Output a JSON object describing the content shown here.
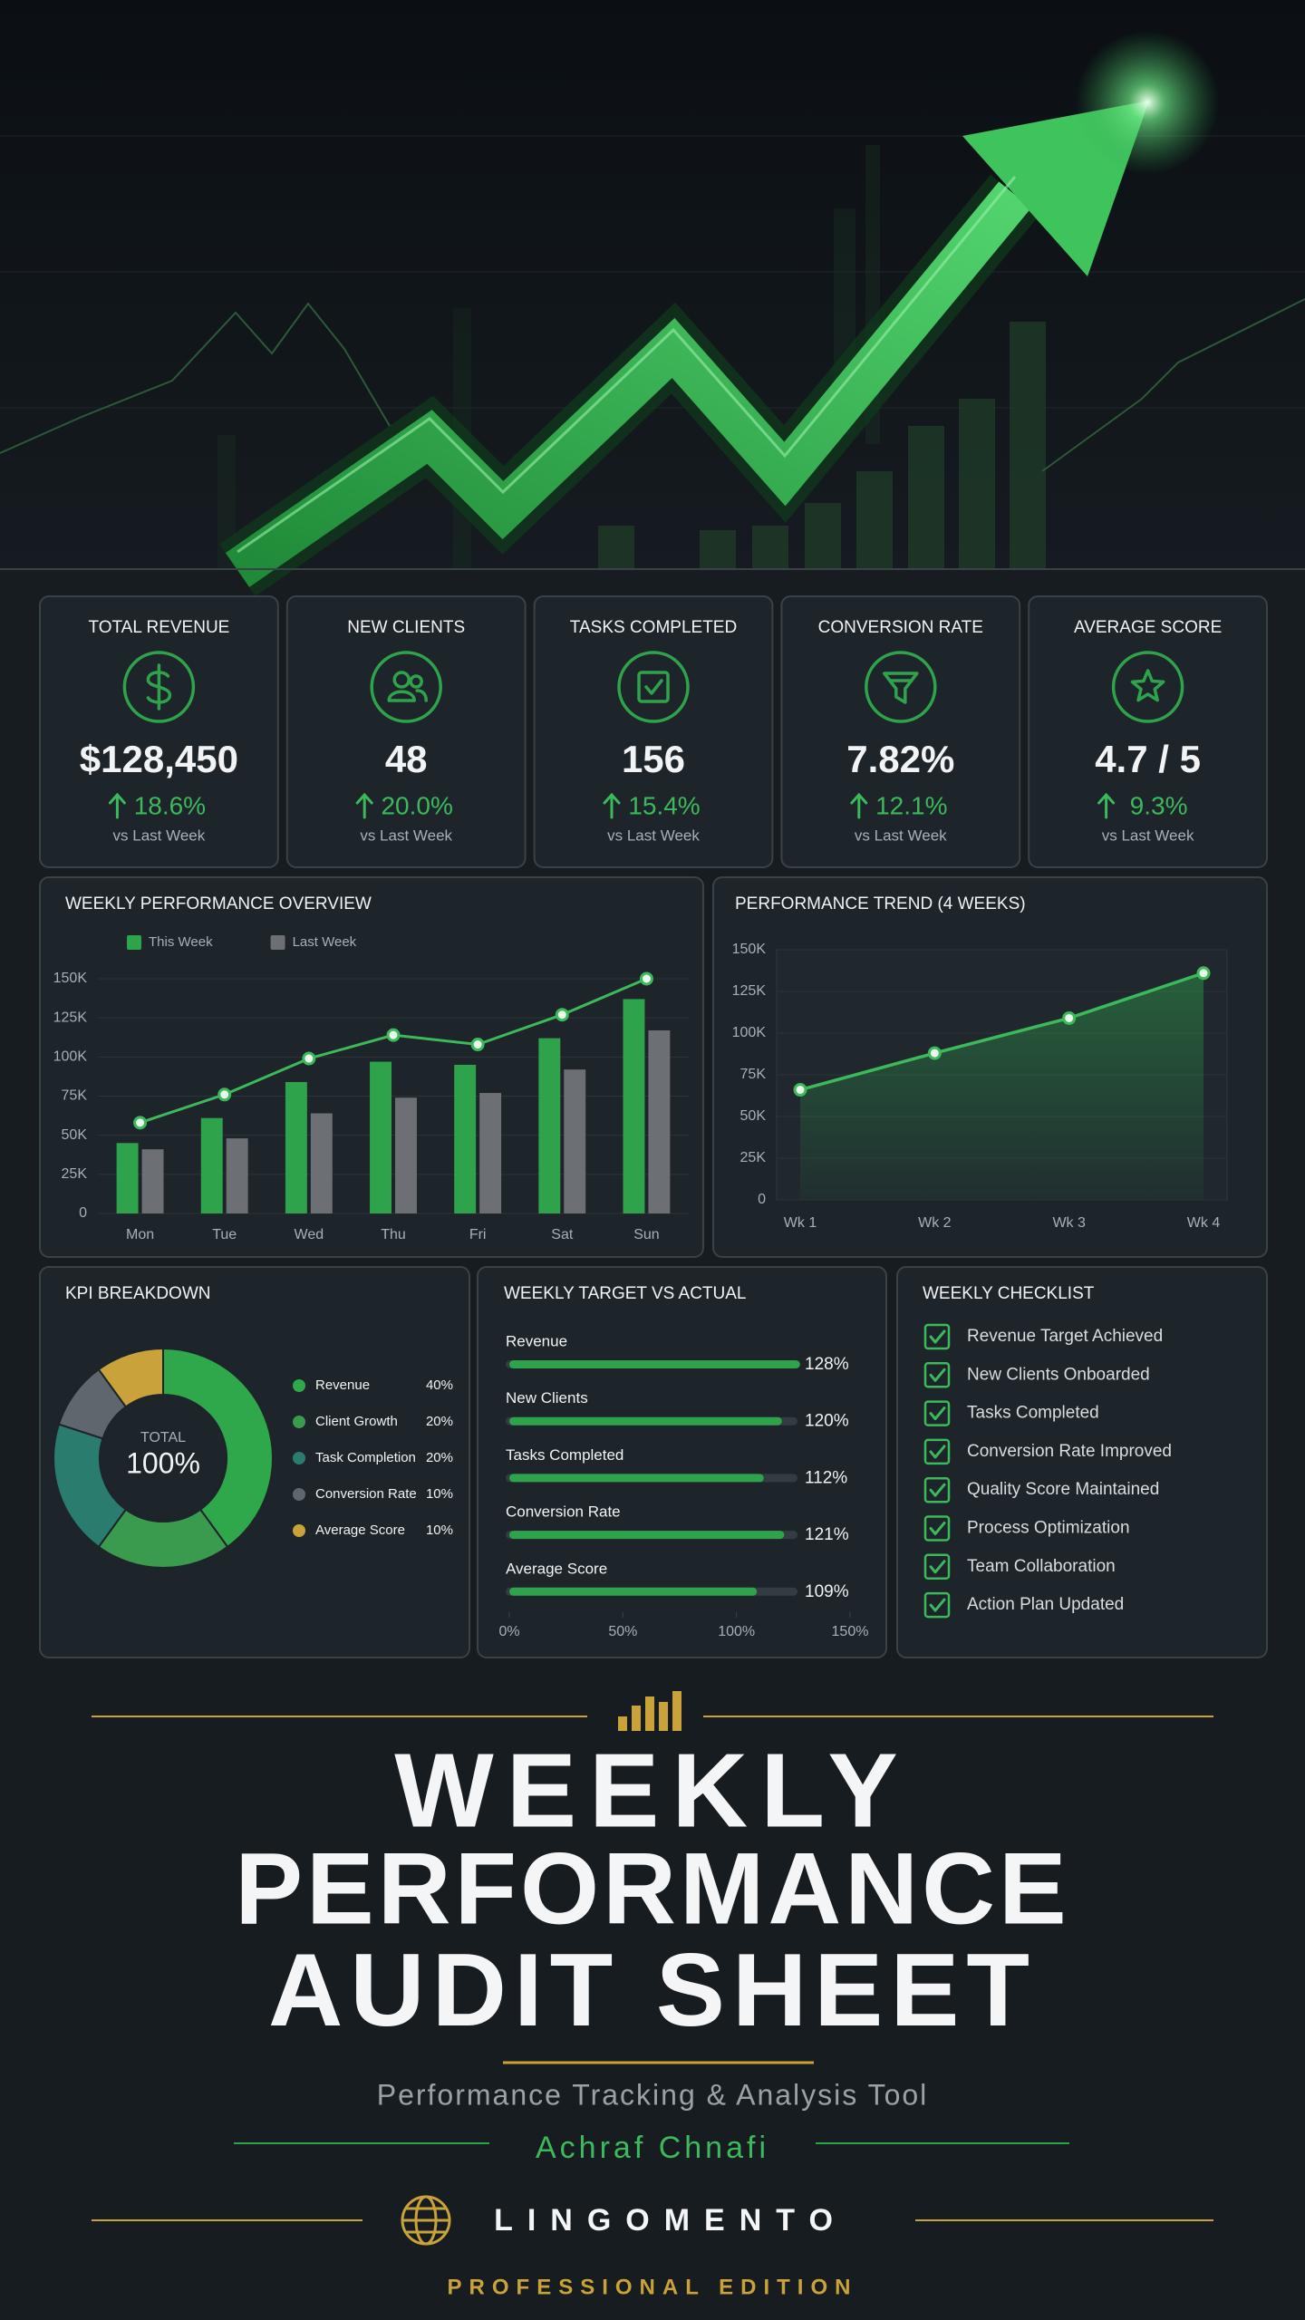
{
  "kpis": [
    {
      "label": "TOTAL REVENUE",
      "value": "$128,450",
      "change": "18.6%",
      "note": "vs Last Week"
    },
    {
      "label": "NEW CLIENTS",
      "value": "48",
      "change": "20.0%",
      "note": "vs Last Week"
    },
    {
      "label": "TASKS COMPLETED",
      "value": "156",
      "change": "15.4%",
      "note": "vs Last Week"
    },
    {
      "label": "CONVERSION RATE",
      "value": "7.82%",
      "change": "12.1%",
      "note": "vs Last Week"
    },
    {
      "label": "AVERAGE SCORE",
      "value": "4.7 / 5",
      "change": "9.3%",
      "note": "vs Last Week"
    }
  ],
  "chart_data": [
    {
      "type": "bar",
      "title": "WEEKLY PERFORMANCE OVERVIEW",
      "categories": [
        "Mon",
        "Tue",
        "Wed",
        "Thu",
        "Fri",
        "Sat",
        "Sun"
      ],
      "series": [
        {
          "name": "This Week",
          "color": "#2fa34c",
          "values": [
            45000,
            61000,
            84000,
            97000,
            95000,
            112000,
            137000
          ]
        },
        {
          "name": "Last Week",
          "color": "#6c7075",
          "values": [
            41000,
            48000,
            64000,
            74000,
            77000,
            92000,
            117000
          ]
        },
        {
          "type": "line",
          "color": "#3cb95a",
          "values": [
            58000,
            76000,
            99000,
            114000,
            108000,
            127000,
            150000
          ]
        }
      ],
      "ylim": [
        0,
        150000
      ],
      "yticks": [
        0,
        {
          "value": 25000,
          "label": "25K"
        },
        {
          "value": 50000,
          "label": "50K"
        },
        {
          "value": 75000,
          "label": "75K"
        },
        {
          "value": 100000,
          "label": "100K"
        },
        {
          "value": 125000,
          "label": "125K"
        },
        {
          "value": 150000,
          "label": "150K"
        }
      ],
      "grid": true,
      "legend": "top-left"
    },
    {
      "type": "area",
      "title": "PERFORMANCE TREND (4 WEEKS)",
      "categories": [
        "Wk 1",
        "Wk 2",
        "Wk 3",
        "Wk 4"
      ],
      "values": [
        66000,
        88000,
        109000,
        136000
      ],
      "color": "#3cb95a",
      "ylim": [
        0,
        150000
      ],
      "yticks": [
        0,
        {
          "value": 25000,
          "label": "25K"
        },
        {
          "value": 50000,
          "label": "50K"
        },
        {
          "value": 75000,
          "label": "75K"
        },
        {
          "value": 100000,
          "label": "100K"
        },
        {
          "value": 125000,
          "label": "125K"
        },
        {
          "value": 150000,
          "label": "150K"
        }
      ],
      "grid": true
    },
    {
      "type": "pie",
      "title": "KPI BREAKDOWN",
      "categories": [
        "Revenue",
        "Client Growth",
        "Task Completion",
        "Conversion Rate",
        "Average Score"
      ],
      "values": [
        40,
        20,
        20,
        10,
        10
      ],
      "value_labels": [
        "40%",
        "20%",
        "20%",
        "10%",
        "10%"
      ],
      "colors": [
        "#2ea84a",
        "#3a9a4e",
        "#2a7d6e",
        "#5f666e",
        "#c9a23a"
      ],
      "donut": true,
      "center_label": "TOTAL",
      "center_value": "100%"
    },
    {
      "type": "bar",
      "orientation": "horizontal",
      "title": "WEEKLY TARGET VS ACTUAL",
      "categories": [
        "Revenue",
        "New Clients",
        "Tasks Completed",
        "Conversion Rate",
        "Average Score"
      ],
      "values": [
        128,
        120,
        112,
        121,
        109
      ],
      "value_labels": [
        "128%",
        "120%",
        "112%",
        "121%",
        "109%"
      ],
      "color": "#2fa34c",
      "xlim": [
        0,
        150
      ],
      "xticks": [
        {
          "value": 0,
          "label": "0%"
        },
        {
          "value": 50,
          "label": "50%"
        },
        {
          "value": 100,
          "label": "100%"
        },
        {
          "value": 150,
          "label": "150%"
        }
      ]
    }
  ],
  "checklist": {
    "title": "WEEKLY CHECKLIST",
    "items": [
      "Revenue Target Achieved",
      "New Clients Onboarded",
      "Tasks Completed",
      "Conversion Rate Improved",
      "Quality Score Maintained",
      "Process Optimization",
      "Team Collaboration",
      "Action Plan Updated"
    ]
  },
  "title": {
    "lines": [
      "WEEKLY",
      "PERFORMANCE",
      "AUDIT SHEET"
    ],
    "subtitle": "Performance Tracking & Analysis Tool",
    "author": "Achraf Chnafi",
    "brand": "LINGOMENTO",
    "edition": "PROFESSIONAL EDITION"
  }
}
